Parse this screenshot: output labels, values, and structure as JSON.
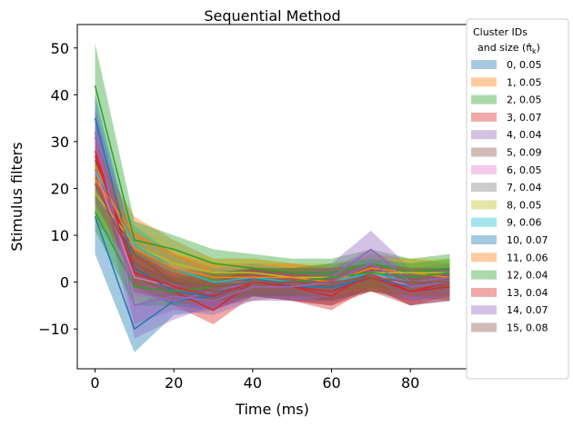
{
  "chart_data": {
    "type": "line",
    "title": "Sequential Method",
    "xlabel": "Time (ms)",
    "ylabel": "Stimulus filters",
    "x": [
      0,
      10,
      20,
      30,
      40,
      50,
      60,
      70,
      80,
      90
    ],
    "xlim": [
      -4.5,
      94.5
    ],
    "ylim": [
      -18.5,
      55
    ],
    "xticks": [
      0,
      20,
      40,
      60,
      80
    ],
    "yticks": [
      -10,
      0,
      10,
      20,
      30,
      40,
      50
    ],
    "xtick_labels": [
      "0",
      "20",
      "40",
      "60",
      "80"
    ],
    "ytick_labels": [
      "−10",
      "0",
      "10",
      "20",
      "30",
      "40",
      "50"
    ],
    "grid": false,
    "legend": {
      "placement": "outside-right",
      "title_line1": "Cluster IDs",
      "title_line2": "and size (π̂",
      "title_sub": "k",
      "title_close": ")"
    },
    "series": [
      {
        "name": "0, 0.05",
        "color": "#1f77b4",
        "values": [
          14,
          -10,
          -4,
          -3,
          1,
          -1,
          -2,
          2,
          -2,
          -1
        ],
        "lower": [
          6,
          -15,
          -7,
          -6,
          -2,
          -4,
          -5,
          -1,
          -5,
          -4
        ],
        "upper": [
          22,
          -5,
          -1,
          0,
          4,
          2,
          1,
          5,
          1,
          2
        ]
      },
      {
        "name": "1, 0.05",
        "color": "#ff7f0e",
        "values": [
          22,
          10,
          6,
          2,
          2,
          1,
          0,
          3,
          2,
          1
        ],
        "lower": [
          16,
          6,
          3,
          -1,
          -1,
          -2,
          -3,
          0,
          -1,
          -2
        ],
        "upper": [
          28,
          14,
          9,
          5,
          5,
          4,
          3,
          6,
          5,
          4
        ]
      },
      {
        "name": "2, 0.05",
        "color": "#2ca02c",
        "values": [
          42,
          9,
          7,
          4,
          3,
          2,
          2,
          4,
          2,
          3
        ],
        "lower": [
          33,
          5,
          4,
          1,
          0,
          -1,
          -1,
          1,
          -1,
          0
        ],
        "upper": [
          51,
          13,
          10,
          7,
          6,
          5,
          5,
          7,
          5,
          6
        ]
      },
      {
        "name": "3, 0.07",
        "color": "#d62728",
        "values": [
          28,
          3,
          -2,
          -6,
          0,
          -1,
          -3,
          2,
          -2,
          0
        ],
        "lower": [
          22,
          -1,
          -5,
          -9,
          -3,
          -4,
          -6,
          -1,
          -5,
          -3
        ],
        "upper": [
          34,
          7,
          1,
          -3,
          3,
          2,
          0,
          5,
          1,
          3
        ]
      },
      {
        "name": "4, 0.04",
        "color": "#9467bd",
        "values": [
          31,
          -2,
          -4,
          -2,
          0,
          0,
          1,
          7,
          0,
          1
        ],
        "lower": [
          25,
          -12,
          -8,
          -5,
          -3,
          -3,
          -2,
          3,
          -3,
          -2
        ],
        "upper": [
          37,
          8,
          0,
          1,
          3,
          3,
          4,
          11,
          3,
          4
        ]
      },
      {
        "name": "5, 0.09",
        "color": "#8c564b",
        "values": [
          26,
          6,
          0,
          -2,
          -1,
          0,
          -1,
          1,
          0,
          -1
        ],
        "lower": [
          22,
          3,
          -3,
          -5,
          -4,
          -3,
          -4,
          -2,
          -3,
          -4
        ],
        "upper": [
          30,
          9,
          3,
          1,
          2,
          3,
          2,
          4,
          3,
          2
        ]
      },
      {
        "name": "6, 0.05",
        "color": "#e377c2",
        "values": [
          24,
          1,
          -1,
          -3,
          0,
          -1,
          0,
          2,
          -1,
          0
        ],
        "lower": [
          19,
          -3,
          -4,
          -6,
          -3,
          -4,
          -3,
          -1,
          -4,
          -3
        ],
        "upper": [
          29,
          5,
          2,
          0,
          3,
          2,
          3,
          5,
          2,
          3
        ]
      },
      {
        "name": "7, 0.04",
        "color": "#7f7f7f",
        "values": [
          18,
          7,
          3,
          0,
          0,
          0,
          0,
          1,
          0,
          0
        ],
        "lower": [
          13,
          3,
          0,
          -3,
          -3,
          -3,
          -3,
          -2,
          -3,
          -3
        ],
        "upper": [
          23,
          11,
          6,
          3,
          3,
          3,
          3,
          4,
          3,
          3
        ]
      },
      {
        "name": "8, 0.05",
        "color": "#bcbd22",
        "values": [
          19,
          8,
          4,
          2,
          2,
          1,
          1,
          2,
          2,
          2
        ],
        "lower": [
          14,
          4,
          1,
          -1,
          -1,
          -2,
          -2,
          -1,
          -1,
          -1
        ],
        "upper": [
          24,
          12,
          7,
          5,
          5,
          4,
          4,
          5,
          5,
          5
        ]
      },
      {
        "name": "9, 0.06",
        "color": "#17becf",
        "values": [
          24,
          8,
          3,
          0,
          1,
          0,
          0,
          2,
          0,
          0
        ],
        "lower": [
          19,
          4,
          0,
          -3,
          -2,
          -3,
          -3,
          -1,
          -3,
          -3
        ],
        "upper": [
          29,
          12,
          6,
          3,
          4,
          3,
          3,
          5,
          3,
          3
        ]
      },
      {
        "name": "10, 0.07",
        "color": "#1f77b4",
        "values": [
          35,
          3,
          -2,
          -3,
          0,
          -1,
          -1,
          1,
          -1,
          0
        ],
        "lower": [
          30,
          -1,
          -5,
          -6,
          -3,
          -4,
          -4,
          -2,
          -4,
          -3
        ],
        "upper": [
          40,
          7,
          1,
          0,
          3,
          2,
          2,
          4,
          2,
          3
        ]
      },
      {
        "name": "11, 0.06",
        "color": "#ff7f0e",
        "values": [
          25,
          7,
          3,
          1,
          1,
          1,
          0,
          1,
          0,
          0
        ],
        "lower": [
          20,
          3,
          0,
          -2,
          -2,
          -2,
          -3,
          -2,
          -3,
          -3
        ],
        "upper": [
          30,
          11,
          6,
          4,
          4,
          4,
          3,
          4,
          3,
          3
        ]
      },
      {
        "name": "12, 0.04",
        "color": "#2ca02c",
        "values": [
          15,
          -1,
          -2,
          -1,
          0,
          0,
          1,
          2,
          1,
          2
        ],
        "lower": [
          11,
          -5,
          -5,
          -4,
          -3,
          -3,
          -2,
          -1,
          -2,
          -1
        ],
        "upper": [
          19,
          3,
          1,
          2,
          3,
          3,
          4,
          5,
          4,
          5
        ]
      },
      {
        "name": "13, 0.04",
        "color": "#d62728",
        "values": [
          27,
          2,
          -1,
          -3,
          0,
          -1,
          -2,
          1,
          -2,
          -1
        ],
        "lower": [
          22,
          -2,
          -4,
          -6,
          -3,
          -4,
          -5,
          -2,
          -5,
          -4
        ],
        "upper": [
          32,
          6,
          2,
          0,
          3,
          2,
          1,
          4,
          1,
          2
        ]
      },
      {
        "name": "14, 0.07",
        "color": "#9467bd",
        "values": [
          32,
          -5,
          -3,
          -4,
          -1,
          -1,
          0,
          4,
          -1,
          0
        ],
        "lower": [
          27,
          -9,
          -6,
          -7,
          -4,
          -4,
          -3,
          1,
          -4,
          -3
        ],
        "upper": [
          37,
          -1,
          0,
          -1,
          2,
          2,
          3,
          7,
          2,
          3
        ]
      },
      {
        "name": "15, 0.08",
        "color": "#8c564b",
        "values": [
          21,
          4,
          0,
          -1,
          0,
          0,
          0,
          1,
          0,
          0
        ],
        "lower": [
          17,
          1,
          -3,
          -4,
          -3,
          -3,
          -3,
          -2,
          -3,
          -3
        ],
        "upper": [
          25,
          7,
          3,
          2,
          3,
          3,
          3,
          4,
          3,
          3
        ]
      }
    ]
  }
}
